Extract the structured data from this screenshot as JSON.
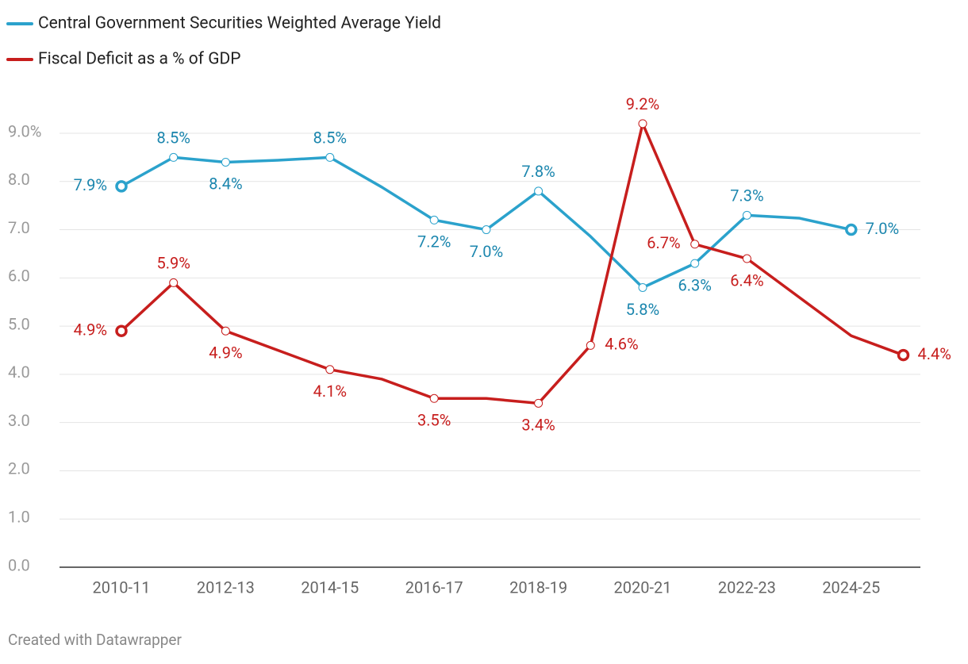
{
  "chart_data": {
    "type": "line",
    "categories": [
      "2010-11",
      null,
      "2012-13",
      null,
      "2014-15",
      null,
      "2016-17",
      null,
      "2018-19",
      null,
      "2020-21",
      null,
      "2022-23",
      null,
      "2024-25",
      null
    ],
    "series": [
      {
        "name": "Central Government Securities Weighted Average Yield",
        "color": "#2ba2cc",
        "label_color": "#1b86ae",
        "values": [
          7.9,
          8.5,
          8.4,
          8.44,
          8.5,
          7.88,
          7.2,
          7.0,
          7.8,
          6.86,
          5.8,
          6.3,
          7.3,
          7.24,
          7.0,
          null
        ],
        "value_labels": [
          "7.9%",
          "8.5%",
          "8.4%",
          null,
          "8.5%",
          null,
          "7.2%",
          "7.0%",
          "7.8%",
          null,
          "5.8%",
          "6.3%",
          "7.3%",
          null,
          "7.0%",
          null
        ]
      },
      {
        "name": "Fiscal Deficit as a % of GDP",
        "color": "#c71e1d",
        "label_color": "#c71e1d",
        "values": [
          4.9,
          5.9,
          4.9,
          4.5,
          4.1,
          3.9,
          3.5,
          3.5,
          3.4,
          4.6,
          9.2,
          6.7,
          6.4,
          5.6,
          4.8,
          4.4
        ],
        "value_labels": [
          "4.9%",
          "5.9%",
          "4.9%",
          null,
          "4.1%",
          null,
          "3.5%",
          null,
          "3.4%",
          "4.6%",
          "9.2%",
          "6.7%",
          "6.4%",
          null,
          null,
          "4.4%"
        ]
      }
    ],
    "ylim": [
      0,
      9
    ],
    "yticks": [
      {
        "value": 0,
        "label": "0.0"
      },
      {
        "value": 1,
        "label": "1.0"
      },
      {
        "value": 2,
        "label": "2.0"
      },
      {
        "value": 3,
        "label": "3.0"
      },
      {
        "value": 4,
        "label": "4.0"
      },
      {
        "value": 5,
        "label": "5.0"
      },
      {
        "value": 6,
        "label": "6.0"
      },
      {
        "value": 7,
        "label": "7.0"
      },
      {
        "value": 8,
        "label": "8.0"
      },
      {
        "value": 9,
        "label": "9.0%"
      }
    ],
    "grid": true,
    "legend": "top-left",
    "source": "Created with Datawrapper"
  }
}
